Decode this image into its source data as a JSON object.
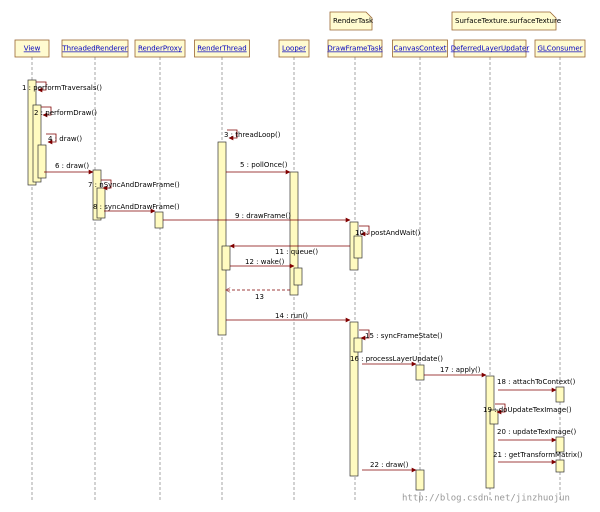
{
  "notes": [
    "RenderTask",
    "SurfaceTexture.surfaceTexture"
  ],
  "lifelines": [
    "View",
    "ThreadedRenderer",
    "RenderProxy",
    "RenderThread",
    "Looper",
    "DrawFrameTask",
    "CanvasContext",
    "DeferredLayerUpdater",
    "GLConsumer"
  ],
  "messages": [
    "1 : performTraversals()",
    "2 : performDraw()",
    "3 : threadLoop()",
    "4 : draw()",
    "5 : pollOnce()",
    "6 : draw()",
    "7 : nSyncAndDrawFrame()",
    "8 : syncAndDrawFrame()",
    "9 : drawFrame()",
    "10 : postAndWait()",
    "11 : queue()",
    "12 : wake()",
    "13",
    "14 : run()",
    "15 : syncFrameState()",
    "16 : processLayerUpdate()",
    "17 : apply()",
    "18 : attachToContext()",
    "19 : doUpdateTexImage()",
    "20 : updateTexImage()",
    "21 : getTransformMatrix()",
    "22 : draw()"
  ],
  "watermark": "http://blog.csdn.net/jinzhuojun"
}
